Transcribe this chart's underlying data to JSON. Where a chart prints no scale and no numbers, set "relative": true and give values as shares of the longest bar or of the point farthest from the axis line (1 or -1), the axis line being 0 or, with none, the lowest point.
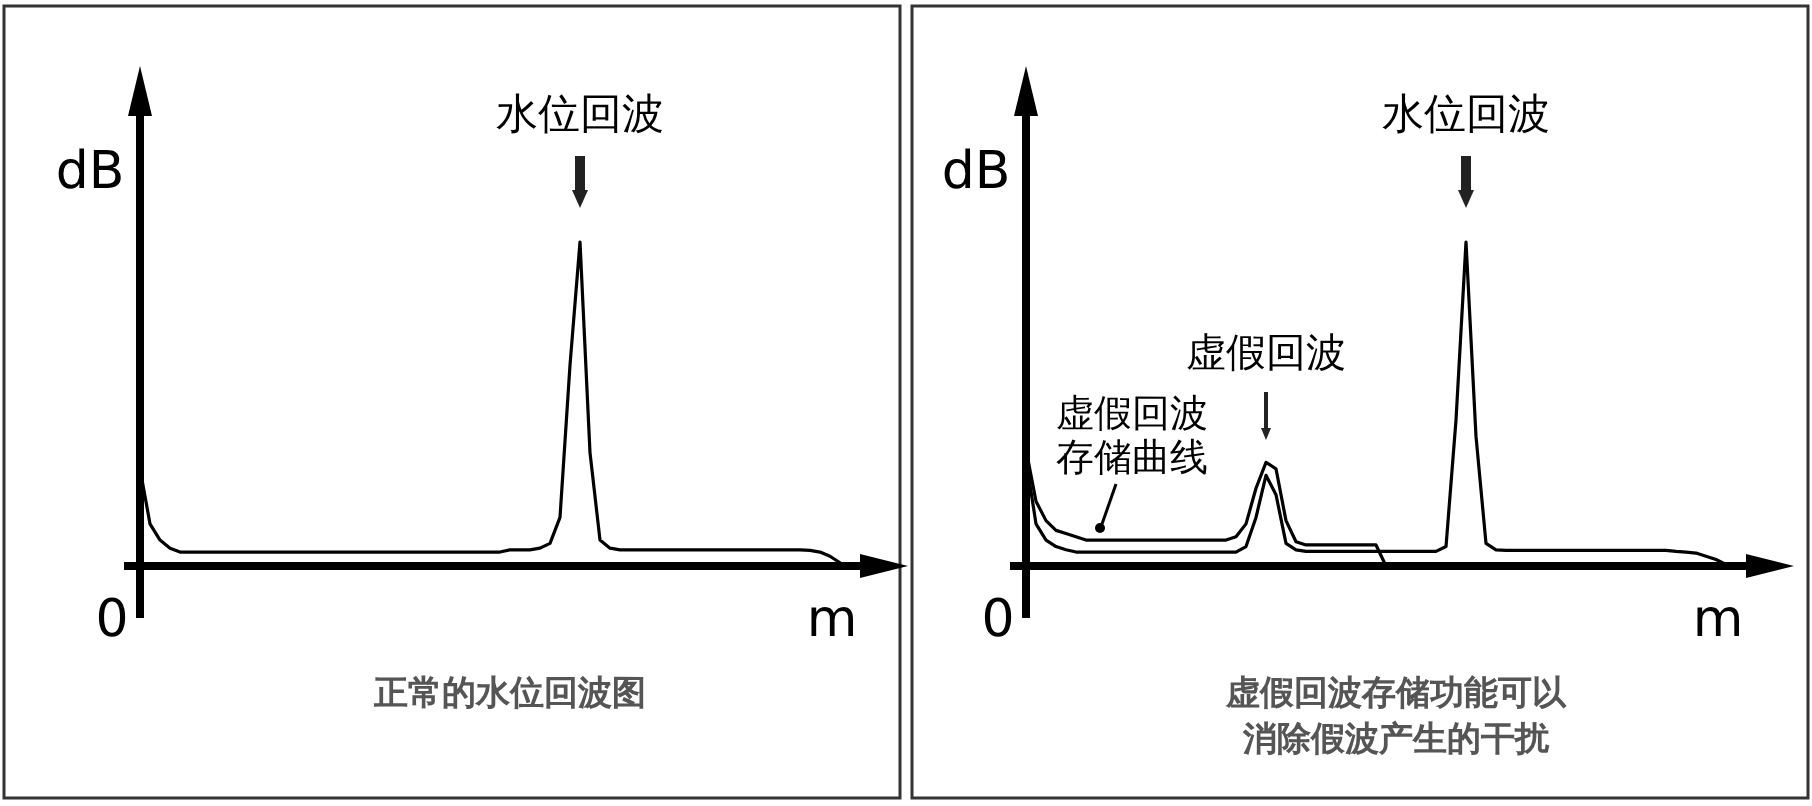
{
  "chart_data": [
    {
      "type": "line",
      "relative": true,
      "xlabel": "m",
      "ylabel": "dB",
      "categories": [
        null,
        null,
        null,
        null,
        null,
        null,
        null,
        null,
        null,
        null,
        null,
        null,
        null,
        null,
        null,
        null,
        null,
        null,
        null,
        null,
        null,
        null,
        null,
        null,
        null,
        null,
        null,
        null,
        null,
        null,
        null,
        null,
        null,
        null,
        null,
        null,
        null,
        null,
        null,
        null,
        null,
        null,
        null,
        null,
        null,
        null,
        null,
        null,
        null,
        null,
        null,
        null,
        null,
        null,
        null,
        null,
        null,
        null,
        null,
        null,
        null,
        null,
        null,
        null,
        null,
        null,
        null,
        null,
        null,
        null,
        null
      ],
      "series": [
        {
          "color": "#000000",
          "values": [
            0.3,
            0.13,
            0.08,
            0.055,
            0.043,
            0.043,
            0.043,
            0.043,
            0.043,
            0.043,
            0.043,
            0.043,
            0.043,
            0.043,
            0.043,
            0.043,
            0.043,
            0.043,
            0.043,
            0.043,
            0.043,
            0.043,
            0.043,
            0.043,
            0.043,
            0.043,
            0.043,
            0.043,
            0.043,
            0.043,
            0.043,
            0.043,
            0.043,
            0.043,
            0.043,
            0.043,
            0.043,
            0.05,
            0.05,
            0.05,
            0.055,
            0.07,
            0.15,
            0.62,
            1,
            0.35,
            0.08,
            0.055,
            0.05,
            0.05,
            0.05,
            0.05,
            0.05,
            0.05,
            0.05,
            0.05,
            0.05,
            0.05,
            0.05,
            0.05,
            0.05,
            0.05,
            0.05,
            0.05,
            0.05,
            0.05,
            0.05,
            0.048,
            0.043,
            0.03,
            0.01
          ]
        }
      ],
      "annotations": [
        "水位回波",
        "0",
        "正常的水位回波图"
      ]
    },
    {
      "type": "line",
      "relative": true,
      "xlabel": "m",
      "ylabel": "dB",
      "categories": [
        null,
        null,
        null,
        null,
        null,
        null,
        null,
        null,
        null,
        null,
        null,
        null,
        null,
        null,
        null,
        null,
        null,
        null,
        null,
        null,
        null,
        null,
        null,
        null,
        null,
        null,
        null,
        null,
        null,
        null,
        null,
        null,
        null,
        null,
        null,
        null,
        null,
        null,
        null,
        null,
        null,
        null,
        null,
        null,
        null,
        null,
        null,
        null,
        null,
        null,
        null,
        null,
        null,
        null,
        null,
        null,
        null,
        null,
        null,
        null,
        null,
        null,
        null,
        null,
        null,
        null,
        null,
        null,
        null,
        null,
        null
      ],
      "series": [
        {
          "color": "#000000",
          "values": [
            0.33,
            0.13,
            0.08,
            0.06,
            0.05,
            0.043,
            0.043,
            0.043,
            0.043,
            0.043,
            0.043,
            0.043,
            0.043,
            0.043,
            0.043,
            0.043,
            0.043,
            0.043,
            0.043,
            0.043,
            0.043,
            0.043,
            0.06,
            0.15,
            0.28,
            0.22,
            0.07,
            0.05,
            0.045,
            0.045,
            0.045,
            0.045,
            0.045,
            0.045,
            0.045,
            0.045,
            0.045,
            0.045,
            0.045,
            0.045,
            0.045,
            0.045,
            0.06,
            0.45,
            1,
            0.4,
            0.07,
            0.05,
            0.048,
            0.048,
            0.048,
            0.048,
            0.048,
            0.048,
            0.048,
            0.048,
            0.048,
            0.048,
            0.048,
            0.048,
            0.048,
            0.048,
            0.048,
            0.048,
            0.048,
            0.045,
            0.043,
            0.04,
            0.03,
            0.02,
            0.005
          ]
        },
        {
          "name": "虚假回波存储曲线",
          "color": "#000000",
          "values": [
            0.36,
            0.2,
            0.14,
            0.11,
            0.1,
            0.09,
            0.08,
            0.08,
            0.08,
            0.08,
            0.08,
            0.08,
            0.08,
            0.08,
            0.08,
            0.08,
            0.08,
            0.08,
            0.08,
            0.08,
            0.08,
            0.09,
            0.13,
            0.24,
            0.32,
            0.3,
            0.14,
            0.075,
            0.065,
            0.065,
            0.065,
            0.065,
            0.065,
            0.065,
            0.065,
            0.065,
            0,
            null,
            null,
            null,
            null,
            null,
            null,
            null,
            null,
            null,
            null,
            null,
            null,
            null,
            null,
            null,
            null,
            null,
            null,
            null,
            null,
            null,
            null,
            null,
            null,
            null,
            null,
            null,
            null,
            null,
            null,
            null,
            null,
            null,
            null
          ]
        }
      ],
      "annotations": [
        "虚假回波",
        "水位回波",
        "0",
        "虚假回波存储功能可以消除假波产生的干扰"
      ]
    }
  ]
}
